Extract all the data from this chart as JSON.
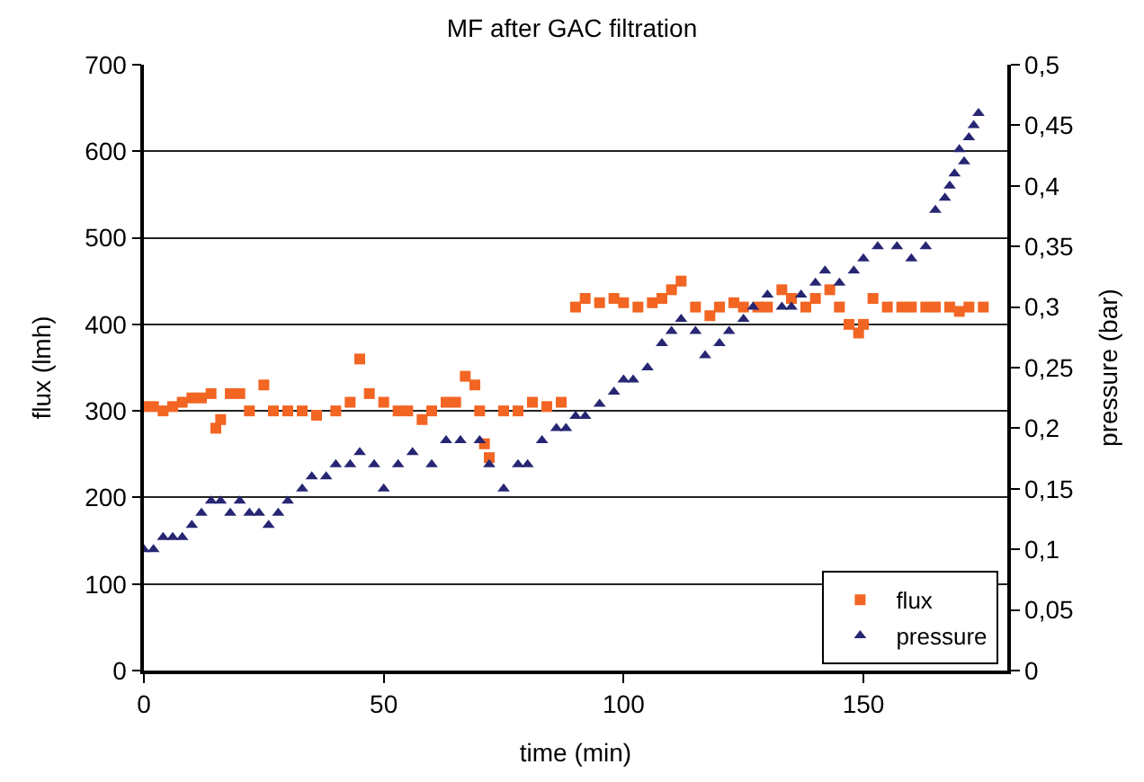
{
  "chart_data": {
    "type": "scatter",
    "title": "MF after GAC filtration",
    "xlabel": "time (min)",
    "ylabel": "flux (lmh)",
    "y2label": "pressure (bar)",
    "xlim": [
      0,
      180
    ],
    "xticks": [
      0,
      50,
      100,
      150
    ],
    "ylim": [
      0,
      700
    ],
    "yticks": [
      0,
      100,
      200,
      300,
      400,
      500,
      600,
      700
    ],
    "y2lim": [
      0,
      0.5
    ],
    "y2ticks": [
      0,
      {
        "value": 0.05,
        "label": "0,05"
      },
      {
        "value": 0.1,
        "label": "0,1"
      },
      {
        "value": 0.15,
        "label": "0,15"
      },
      {
        "value": 0.2,
        "label": "0,2"
      },
      {
        "value": 0.25,
        "label": "0,25"
      },
      {
        "value": 0.3,
        "label": "0,3"
      },
      {
        "value": 0.35,
        "label": "0,35"
      },
      {
        "value": 0.4,
        "label": "0,4"
      },
      {
        "value": 0.45,
        "label": "0,45"
      },
      {
        "value": 0.5,
        "label": "0,5"
      }
    ],
    "grid": "y",
    "legend": "bottom right",
    "series": [
      {
        "name": "flux",
        "color": "#f26522",
        "marker": "square",
        "x": [
          0,
          2,
          4,
          6,
          8,
          10,
          12,
          14,
          15,
          16,
          18,
          20,
          22,
          25,
          27,
          30,
          33,
          36,
          40,
          43,
          45,
          47,
          50,
          53,
          55,
          58,
          60,
          63,
          65,
          67,
          69,
          70,
          71,
          72,
          75,
          78,
          81,
          84,
          87,
          90,
          92,
          95,
          98,
          100,
          103,
          106,
          108,
          110,
          112,
          115,
          118,
          120,
          123,
          125,
          128,
          130,
          133,
          135,
          138,
          140,
          143,
          145,
          147,
          149,
          150,
          152,
          155,
          158,
          160,
          163,
          165,
          168,
          170,
          172,
          175
        ],
        "values": [
          305,
          305,
          300,
          305,
          310,
          315,
          315,
          320,
          280,
          290,
          320,
          320,
          300,
          330,
          300,
          300,
          300,
          295,
          300,
          310,
          360,
          320,
          310,
          300,
          300,
          290,
          300,
          310,
          310,
          340,
          330,
          300,
          262,
          246,
          300,
          300,
          310,
          305,
          310,
          420,
          430,
          425,
          430,
          425,
          420,
          425,
          430,
          440,
          450,
          420,
          410,
          420,
          425,
          420,
          420,
          420,
          440,
          430,
          420,
          430,
          440,
          420,
          400,
          390,
          400,
          430,
          420,
          420,
          420,
          420,
          420,
          420,
          415,
          420,
          420
        ]
      },
      {
        "name": "pressure",
        "color": "#262673",
        "marker": "triangle",
        "axis": "y2",
        "x": [
          0,
          2,
          4,
          6,
          8,
          10,
          12,
          14,
          16,
          18,
          20,
          22,
          24,
          26,
          28,
          30,
          33,
          35,
          38,
          40,
          43,
          45,
          48,
          50,
          53,
          56,
          60,
          63,
          66,
          70,
          72,
          75,
          78,
          80,
          83,
          86,
          88,
          90,
          92,
          95,
          98,
          100,
          102,
          105,
          108,
          110,
          112,
          115,
          117,
          120,
          122,
          125,
          127,
          130,
          133,
          135,
          137,
          140,
          142,
          145,
          148,
          150,
          153,
          157,
          160,
          163,
          165,
          167,
          168,
          169,
          170,
          171,
          172,
          173,
          174
        ],
        "values": [
          0.1,
          0.1,
          0.11,
          0.11,
          0.11,
          0.12,
          0.13,
          0.14,
          0.14,
          0.13,
          0.14,
          0.13,
          0.13,
          0.12,
          0.13,
          0.14,
          0.15,
          0.16,
          0.16,
          0.17,
          0.17,
          0.18,
          0.17,
          0.15,
          0.17,
          0.18,
          0.17,
          0.19,
          0.19,
          0.19,
          0.17,
          0.15,
          0.17,
          0.17,
          0.19,
          0.2,
          0.2,
          0.21,
          0.21,
          0.22,
          0.23,
          0.24,
          0.24,
          0.25,
          0.27,
          0.28,
          0.29,
          0.28,
          0.26,
          0.27,
          0.28,
          0.29,
          0.3,
          0.31,
          0.3,
          0.3,
          0.31,
          0.32,
          0.33,
          0.32,
          0.33,
          0.34,
          0.35,
          0.35,
          0.34,
          0.35,
          0.38,
          0.39,
          0.4,
          0.41,
          0.43,
          0.42,
          0.44,
          0.45,
          0.46
        ]
      }
    ]
  }
}
